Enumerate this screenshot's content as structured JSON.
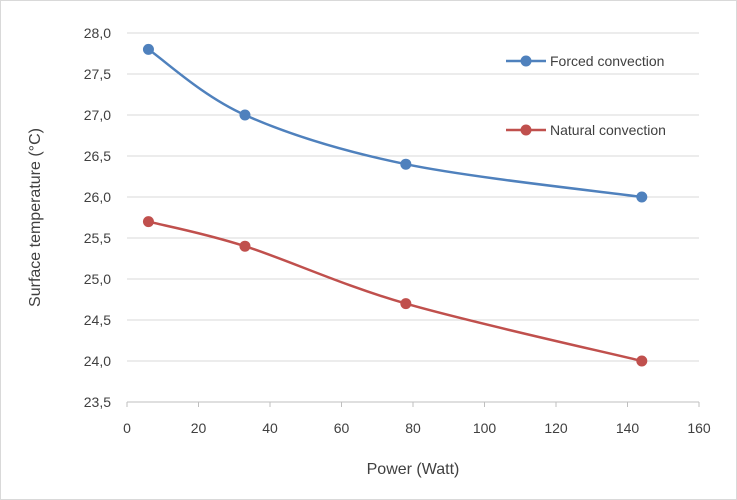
{
  "chart_data": {
    "type": "line",
    "title": "",
    "xlabel": "Power (Watt)",
    "ylabel": "Surface temperature (°C)",
    "xlim": [
      0,
      160
    ],
    "ylim": [
      23.5,
      28.0
    ],
    "x_ticks": [
      "0",
      "20",
      "40",
      "60",
      "80",
      "100",
      "120",
      "140",
      "160"
    ],
    "y_ticks": [
      "23,5",
      "24,0",
      "24,5",
      "25,0",
      "25,5",
      "26,0",
      "26,5",
      "27,0",
      "27,5",
      "28,0"
    ],
    "grid": "horizontal",
    "smooth": true,
    "legend": "right",
    "series": [
      {
        "name": "Forced convection",
        "color": "#4f81bd",
        "x": [
          6,
          33,
          78,
          144
        ],
        "y": [
          27.8,
          27.0,
          26.4,
          26.0
        ]
      },
      {
        "name": "Natural convection",
        "color": "#c0504d",
        "x": [
          6,
          33,
          78,
          144
        ],
        "y": [
          25.7,
          25.4,
          24.7,
          24.0
        ]
      }
    ]
  }
}
